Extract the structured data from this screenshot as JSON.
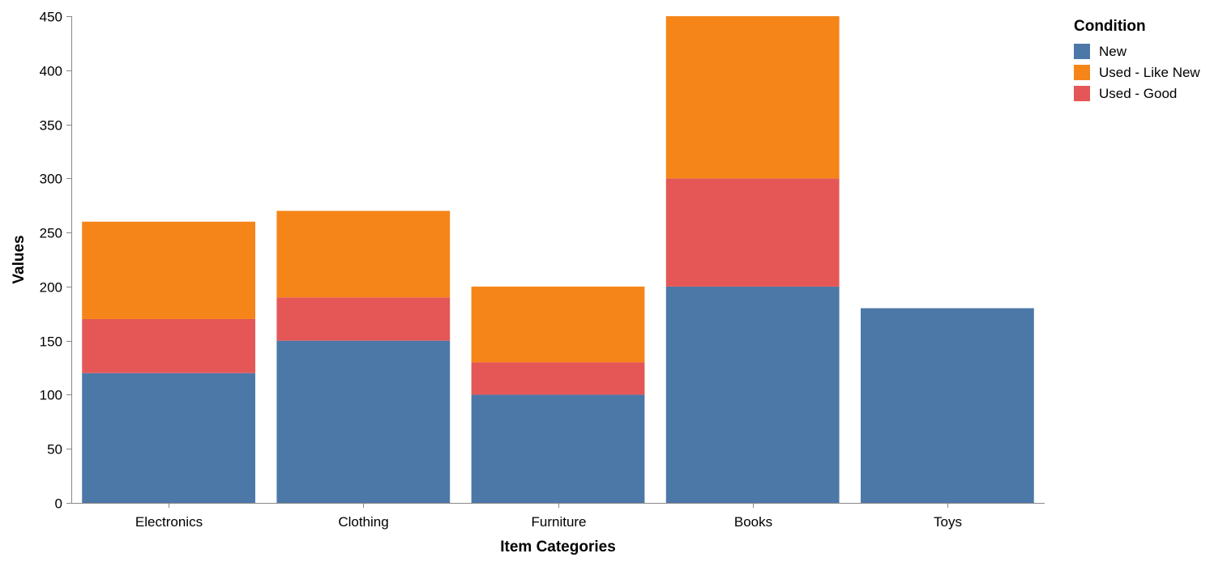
{
  "chart_data": {
    "type": "bar",
    "stacked": true,
    "categories": [
      "Electronics",
      "Clothing",
      "Furniture",
      "Books",
      "Toys"
    ],
    "series": [
      {
        "name": "New",
        "values": [
          120,
          150,
          100,
          200,
          180
        ],
        "color": "#4c78a8"
      },
      {
        "name": "Used - Good",
        "values": [
          50,
          40,
          30,
          100,
          0
        ],
        "color": "#e45756"
      },
      {
        "name": "Used - Like New",
        "values": [
          90,
          80,
          70,
          150,
          0
        ],
        "color": "#f58518"
      }
    ],
    "xlabel": "Item Categories",
    "ylabel": "Values",
    "ylim": [
      0,
      450
    ],
    "yticks": [
      0,
      50,
      100,
      150,
      200,
      250,
      300,
      350,
      400,
      450
    ],
    "grid": false,
    "legend": {
      "title": "Condition",
      "placement": "top-right",
      "items": [
        {
          "label": "New",
          "color": "#4c78a8"
        },
        {
          "label": "Used - Like New",
          "color": "#f58518"
        },
        {
          "label": "Used - Good",
          "color": "#e45756"
        }
      ]
    }
  }
}
